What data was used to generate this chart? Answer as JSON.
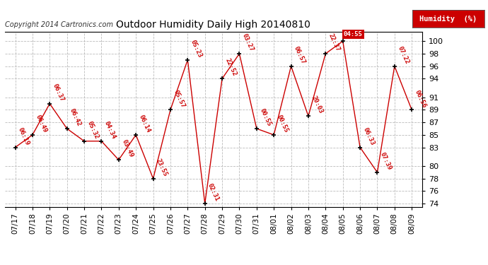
{
  "title": "Outdoor Humidity Daily High 20140810",
  "copyright": "Copyright 2014 Cartronics.com",
  "legend_label": "Humidity  (%)",
  "plot_bg_color": "#ffffff",
  "grid_color": "#bbbbbb",
  "line_color": "#cc0000",
  "marker_color": "#000000",
  "annotation_color": "#cc0000",
  "ylim": [
    73.5,
    101.5
  ],
  "yticks": [
    74,
    76,
    78,
    80,
    83,
    85,
    87,
    89,
    91,
    94,
    96,
    98,
    100
  ],
  "x_labels": [
    "07/17",
    "07/18",
    "07/19",
    "07/20",
    "07/21",
    "07/22",
    "07/23",
    "07/24",
    "07/25",
    "07/26",
    "07/27",
    "07/28",
    "07/29",
    "07/30",
    "07/31",
    "08/01",
    "08/02",
    "08/03",
    "08/04",
    "08/05",
    "08/06",
    "08/07",
    "08/08",
    "08/09"
  ],
  "y_values": [
    83,
    85,
    90,
    86,
    84,
    84,
    81,
    85,
    78,
    89,
    97,
    74,
    94,
    98,
    86,
    85,
    96,
    88,
    98,
    100,
    83,
    79,
    96,
    89
  ],
  "annotations": [
    "06:19",
    "06:49",
    "06:37",
    "06:42",
    "05:32",
    "04:34",
    "03:49",
    "06:14",
    "23:55",
    "05:57",
    "05:23",
    "02:31",
    "22:52",
    "03:27",
    "00:55",
    "00:55",
    "06:57",
    "20:03",
    "22:37",
    "04:55",
    "06:33",
    "07:39",
    "07:22",
    "06:56"
  ],
  "special_idx": 19,
  "special_bg": "#cc0000",
  "special_text_color": "#ffffff",
  "ann_rotation": -65,
  "ann_fontsize": 6.5,
  "title_fontsize": 10,
  "tick_fontsize": 7.5,
  "ytick_fontsize": 8,
  "copyright_fontsize": 7,
  "legend_fontsize": 7.5
}
